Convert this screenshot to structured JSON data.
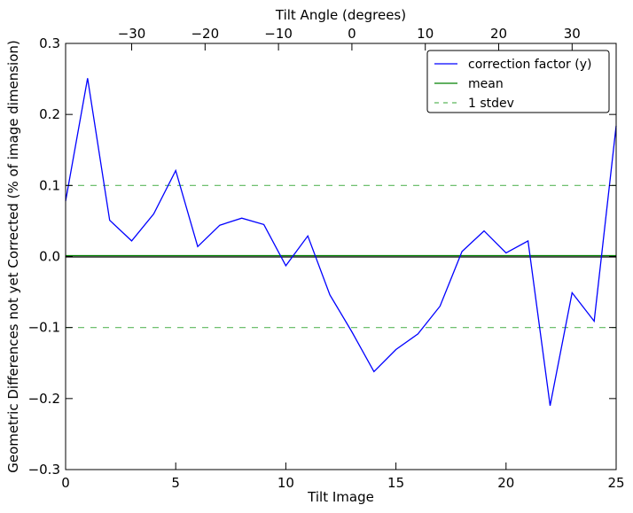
{
  "chart_data": {
    "type": "line",
    "xlabel": "Tilt Image",
    "ylabel": "Geometric Differences not yet Corrected (% of image dimension)",
    "x2label": "Tilt Angle (degrees)",
    "xlim": [
      0,
      25
    ],
    "ylim": [
      -0.3,
      0.3
    ],
    "x2lim": [
      -39,
      36
    ],
    "xticks": [
      0,
      5,
      10,
      15,
      20,
      25
    ],
    "yticks": [
      -0.3,
      -0.2,
      -0.1,
      0.0,
      0.1,
      0.2,
      0.3
    ],
    "ytick_labels": [
      "−0.3",
      "−0.2",
      "−0.1",
      "0.0",
      "0.1",
      "0.2",
      "0.3"
    ],
    "x2ticks": [
      -30,
      -20,
      -10,
      0,
      10,
      20,
      30
    ],
    "x2tick_labels": [
      "−30",
      "−20",
      "−10",
      "0",
      "10",
      "20",
      "30"
    ],
    "grid": false,
    "legend_position": "top-right",
    "series": [
      {
        "name": "correction factor (y)",
        "color": "#0000ff",
        "style": "solid",
        "x": [
          0,
          1,
          2,
          3,
          4,
          5,
          6,
          7,
          8,
          9,
          10,
          11,
          12,
          13,
          14,
          15,
          16,
          17,
          18,
          19,
          20,
          21,
          22,
          23,
          24,
          25
        ],
        "y": [
          0.078,
          0.251,
          0.051,
          0.022,
          0.06,
          0.121,
          0.014,
          0.044,
          0.054,
          0.045,
          -0.013,
          0.029,
          -0.054,
          -0.106,
          -0.162,
          -0.131,
          -0.109,
          -0.07,
          0.007,
          0.036,
          0.005,
          0.022,
          -0.21,
          -0.051,
          -0.091,
          0.184
        ]
      },
      {
        "name": "mean",
        "color": "#008000",
        "style": "solid",
        "x": [
          0,
          25
        ],
        "y": [
          0.0,
          0.0
        ]
      },
      {
        "name": "1 stdev",
        "color": "#5cb85c",
        "style": "dashed",
        "bands": [
          0.1,
          -0.1
        ]
      }
    ],
    "extra_lines": [
      {
        "color": "#000000",
        "y": 0.0
      }
    ]
  }
}
